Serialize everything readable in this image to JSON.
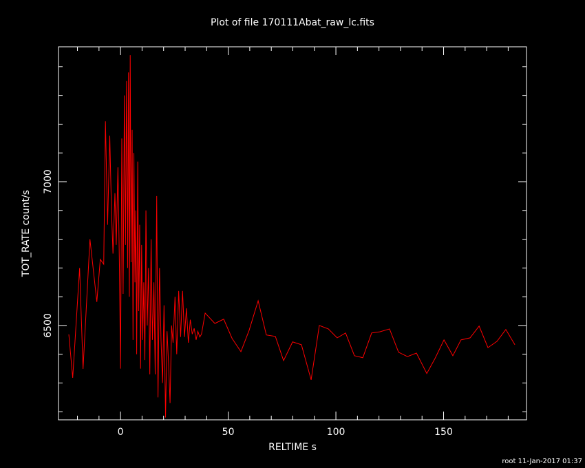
{
  "chart_data": {
    "type": "line",
    "title": "Plot of file 170111Abat_raw_lc.fits",
    "xlabel": "RELTIME  s",
    "ylabel": "TOT_RATE  count/s",
    "footer": "root 11-Jan-2017 01:37",
    "xlim": [
      -28.8,
      188.5
    ],
    "ylim": [
      6172,
      7469
    ],
    "xticks": [
      0,
      50,
      100,
      150
    ],
    "yticks": [
      6500,
      7000
    ],
    "xminorticks": [
      -20,
      -10,
      10,
      20,
      30,
      40,
      60,
      70,
      80,
      90,
      110,
      120,
      130,
      140,
      160,
      170,
      180
    ],
    "yminorticks": [
      6200,
      6300,
      6400,
      6600,
      6700,
      6800,
      6900,
      7100,
      7200,
      7300,
      7400
    ],
    "x": [
      -24,
      -22.2,
      -19,
      -17.4,
      -14.2,
      -11,
      -9.4,
      -7.8,
      -7,
      -6,
      -5,
      -4.2,
      -3.5,
      -2.6,
      -2,
      -1.2,
      -0.5,
      0,
      0.6,
      1.2,
      1.8,
      2.3,
      2.8,
      3.3,
      3.7,
      4.1,
      4.5,
      4.9,
      5.4,
      5.8,
      6.2,
      6.7,
      7.1,
      7.5,
      8,
      8.4,
      8.9,
      9.3,
      9.8,
      10.3,
      10.8,
      11.3,
      11.8,
      12.4,
      13,
      13.6,
      14.2,
      14.8,
      15.5,
      16.1,
      16.8,
      17.4,
      18.1,
      18.8,
      19.5,
      20.2,
      20.9,
      21.6,
      22.3,
      23,
      23.7,
      24.4,
      25.3,
      26.1,
      27,
      27.9,
      28.8,
      29.7,
      30.6,
      31.5,
      32.4,
      33.3,
      34.2,
      35.1,
      35.9,
      36.8,
      37.6,
      39.3,
      43.8,
      47.9,
      51.8,
      55.9,
      59.7,
      63.9,
      67.7,
      71.9,
      75.7,
      79.9,
      84.0,
      88.5,
      92.3,
      96.5,
      100.6,
      104.5,
      108.6,
      112.5,
      116.6,
      120.4,
      124.9,
      129.1,
      133.2,
      137.4,
      142.2,
      146.0,
      150.2,
      154.3,
      158.1,
      162.3,
      166.5,
      170.6,
      174.8,
      178.9,
      183.1
    ],
    "series": [
      {
        "color": "#ff0000",
        "values": [
          6469,
          6318,
          6700,
          6349,
          6800,
          6582,
          6730,
          6713,
          7210,
          6850,
          7160,
          6900,
          6750,
          6960,
          6780,
          7050,
          6700,
          6350,
          7150,
          6610,
          7300,
          6780,
          7350,
          6700,
          7380,
          6600,
          7440,
          6720,
          7180,
          6450,
          7100,
          6650,
          6900,
          6400,
          7070,
          6550,
          6850,
          6350,
          6780,
          6450,
          6650,
          6380,
          6900,
          6500,
          6700,
          6330,
          6800,
          6450,
          6650,
          6330,
          6950,
          6250,
          6700,
          6450,
          6300,
          6570,
          6180,
          6480,
          6370,
          6230,
          6500,
          6440,
          6600,
          6400,
          6620,
          6460,
          6620,
          6460,
          6560,
          6440,
          6520,
          6470,
          6490,
          6450,
          6480,
          6460,
          6470,
          6543,
          6507,
          6522,
          6455,
          6409,
          6483,
          6586,
          6467,
          6462,
          6378,
          6443,
          6433,
          6311,
          6500,
          6488,
          6457,
          6474,
          6395,
          6388,
          6474,
          6478,
          6488,
          6407,
          6392,
          6404,
          6333,
          6385,
          6450,
          6395,
          6450,
          6457,
          6498,
          6423,
          6445,
          6486,
          6433
        ]
      }
    ]
  }
}
